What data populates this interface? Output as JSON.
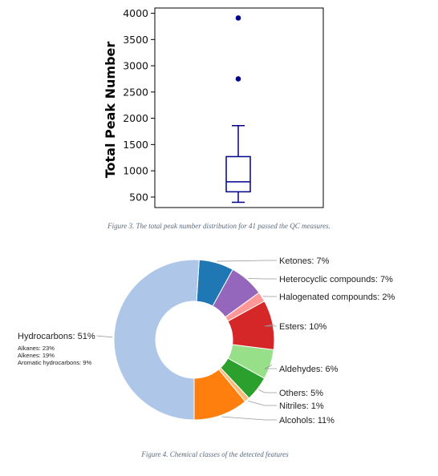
{
  "chart_data": [
    {
      "type": "box",
      "ylabel": "Total Peak Number",
      "ylim": [
        300,
        4100
      ],
      "yticks": [
        500,
        1000,
        1500,
        2000,
        2500,
        3000,
        3500,
        4000
      ],
      "box": {
        "whisker_low": 400,
        "q1": 600,
        "median": 790,
        "q3": 1270,
        "whisker_high": 1860
      },
      "outliers": [
        2750,
        3910
      ],
      "color": "#00008b",
      "caption": "Figure 3. The total peak number distribution for 41 passed the QC measures."
    },
    {
      "type": "pie",
      "variant": "donut",
      "caption": "Figure 4. Chemical classes of the detected features",
      "slices": [
        {
          "label": "Ketones: 7%",
          "value": 7,
          "color": "#1f77b4"
        },
        {
          "label": "Heterocyclic compounds: 7%",
          "value": 7,
          "color": "#9467bd"
        },
        {
          "label": "Halogenated compounds: 2%",
          "value": 2,
          "color": "#ff9896"
        },
        {
          "label": "Esters: 10%",
          "value": 10,
          "color": "#d62728"
        },
        {
          "label": "Aldehydes: 6%",
          "value": 6,
          "color": "#98df8a"
        },
        {
          "label": "Others: 5%",
          "value": 5,
          "color": "#2ca02c"
        },
        {
          "label": "Nitriles: 1%",
          "value": 1,
          "color": "#ffbb78"
        },
        {
          "label": "Alcohols: 11%",
          "value": 11,
          "color": "#ff7f0e"
        },
        {
          "label": "Hydrocarbons: 51%",
          "value": 51,
          "color": "#aec7e8"
        }
      ],
      "hydrocarbon_breakdown": [
        "Alkanes: 23%",
        "Alkenes: 19%",
        "Aromatic hydrocarbons: 9%"
      ]
    }
  ]
}
